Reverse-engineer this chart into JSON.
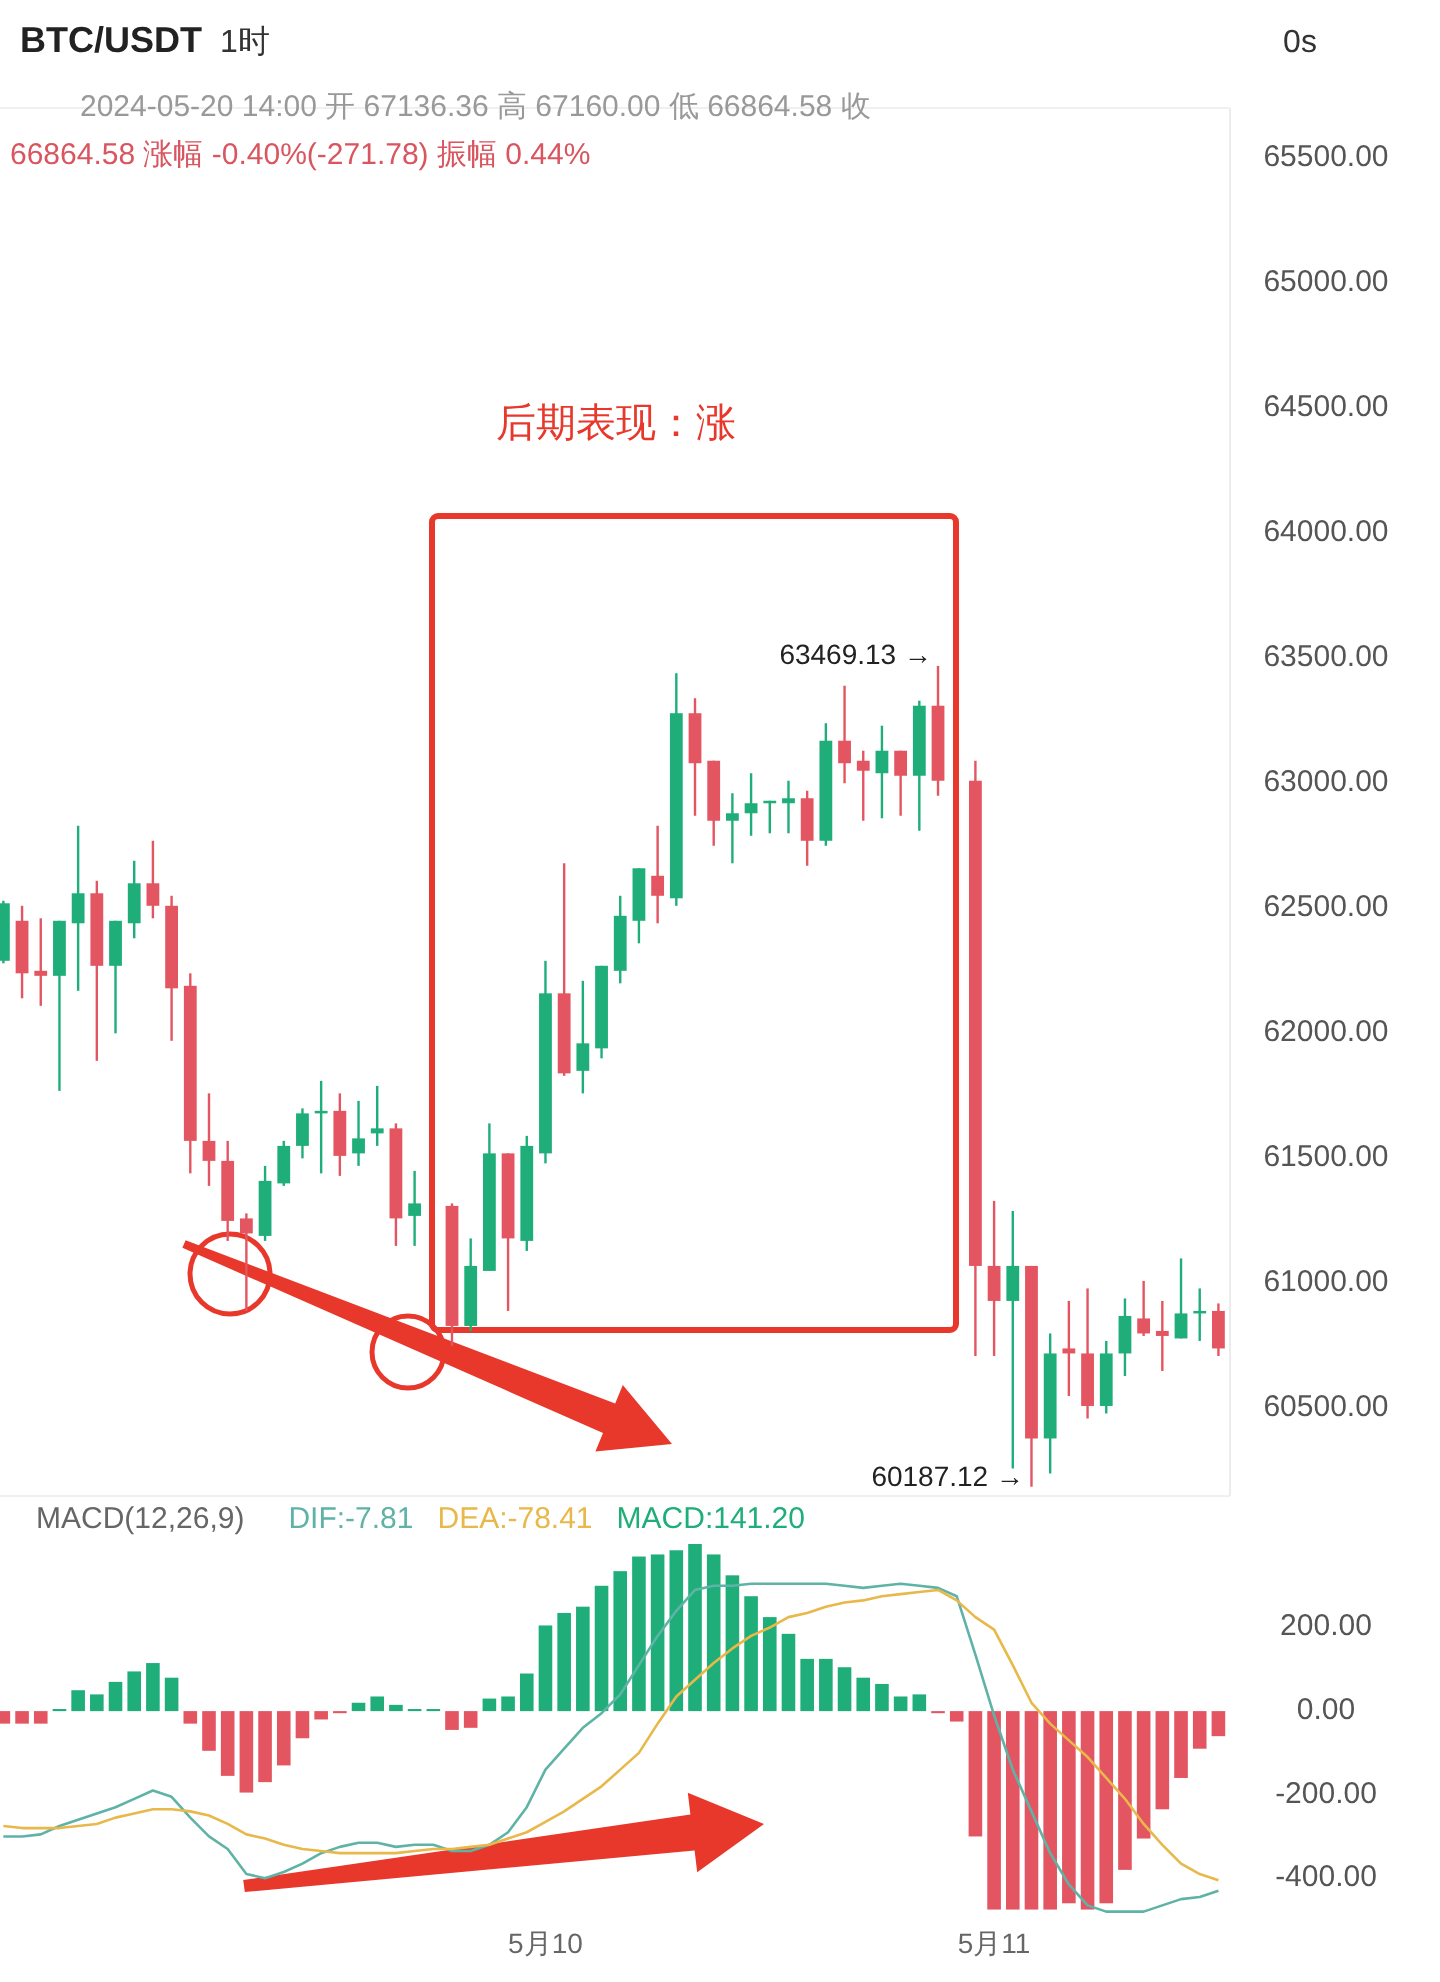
{
  "chart_data": [
    {
      "type": "candlestick",
      "title": "BTC/USDT",
      "subtitle": "2024-05-20 14:00 开 67136.36 高 67160.00 低 66864.58 收",
      "annotations": [
        "66864.58 涨幅 -0.40%(-271.78) 振幅 0.44%",
        "1时",
        "0s",
        "后期表现：涨",
        "63469.13 →",
        "60187.12 →"
      ],
      "categories": [
        null,
        null,
        null,
        null,
        null,
        null,
        null,
        null,
        null,
        null,
        null,
        null,
        null,
        null,
        null,
        null,
        null,
        null,
        null,
        null,
        null,
        null,
        null,
        null,
        null,
        null,
        null,
        null,
        null,
        null,
        null,
        null,
        null,
        null,
        null,
        null,
        null,
        null,
        null,
        null,
        null,
        null,
        null,
        null,
        null,
        null,
        null,
        null,
        null,
        null,
        null,
        null,
        null,
        null,
        null,
        null,
        null,
        null,
        null,
        null,
        null,
        null,
        null,
        null,
        null,
        null
      ],
      "ohlc": [
        [
          62290,
          62530,
          62280,
          62520
        ],
        [
          62450,
          62510,
          62140,
          62240
        ],
        [
          62250,
          62460,
          62110,
          62230
        ],
        [
          62230,
          62450,
          61770,
          62450
        ],
        [
          62440,
          62830,
          62170,
          62560
        ],
        [
          62560,
          62610,
          61890,
          62270
        ],
        [
          62270,
          62450,
          62000,
          62450
        ],
        [
          62440,
          62690,
          62380,
          62600
        ],
        [
          62600,
          62770,
          62460,
          62510
        ],
        [
          62510,
          62550,
          61970,
          62180
        ],
        [
          62190,
          62240,
          61440,
          61570
        ],
        [
          61570,
          61760,
          61390,
          61490
        ],
        [
          61490,
          61570,
          61170,
          61250
        ],
        [
          61260,
          61280,
          60890,
          61200
        ],
        [
          61190,
          61470,
          61170,
          61410
        ],
        [
          61400,
          61570,
          61390,
          61550
        ],
        [
          61550,
          61700,
          61500,
          61680
        ],
        [
          61680,
          61810,
          61440,
          61690
        ],
        [
          61690,
          61760,
          61430,
          61510
        ],
        [
          61520,
          61730,
          61470,
          61580
        ],
        [
          61600,
          61790,
          61550,
          61620
        ],
        [
          61620,
          61640,
          61150,
          61260
        ],
        [
          61270,
          61450,
          61150,
          61320
        ],
        null,
        [
          61310,
          61320,
          60750,
          60830
        ],
        [
          60830,
          61180,
          60810,
          61070
        ],
        [
          61050,
          61640,
          61050,
          61520
        ],
        [
          61520,
          61520,
          60890,
          61180
        ],
        [
          61170,
          61590,
          61130,
          61550
        ],
        [
          61520,
          62290,
          61480,
          62160
        ],
        [
          62160,
          62680,
          61830,
          61840
        ],
        [
          61850,
          62210,
          61760,
          61960
        ],
        [
          61940,
          62270,
          61900,
          62270
        ],
        [
          62250,
          62550,
          62200,
          62470
        ],
        [
          62450,
          62660,
          62360,
          62660
        ],
        [
          62630,
          62830,
          62440,
          62550
        ],
        [
          62540,
          63440,
          62510,
          63280
        ],
        [
          63280,
          63340,
          62870,
          63080
        ],
        [
          63090,
          63090,
          62750,
          62850
        ],
        [
          62850,
          62960,
          62680,
          62880
        ],
        [
          62880,
          63040,
          62790,
          62920
        ],
        [
          62920,
          62930,
          62800,
          62930
        ],
        [
          62920,
          63010,
          62800,
          62940
        ],
        [
          62940,
          62970,
          62670,
          62770
        ],
        [
          62770,
          63240,
          62750,
          63170
        ],
        [
          63170,
          63390,
          63000,
          63080
        ],
        [
          63090,
          63130,
          62850,
          63050
        ],
        [
          63040,
          63230,
          62860,
          63130
        ],
        [
          63130,
          63130,
          62870,
          63030
        ],
        [
          63030,
          63330,
          62810,
          63310
        ],
        [
          63310,
          63469.13,
          62950,
          63010
        ],
        null,
        [
          63010,
          63090,
          60710,
          61070
        ],
        [
          61070,
          61330,
          60710,
          60930
        ],
        [
          60930,
          61290,
          60260,
          61070
        ],
        [
          61070,
          61070,
          60187.12,
          60380
        ],
        [
          60380,
          60800,
          60240,
          60720
        ],
        [
          60740,
          60930,
          60550,
          60720
        ],
        [
          60720,
          60980,
          60460,
          60510
        ],
        [
          60510,
          60770,
          60480,
          60720
        ],
        [
          60720,
          60940,
          60630,
          60870
        ],
        [
          60860,
          61010,
          60790,
          60800
        ],
        [
          60810,
          60930,
          60650,
          60790
        ],
        [
          60780,
          61100,
          60780,
          60880
        ],
        [
          60880,
          60980,
          60770,
          60890
        ],
        [
          60890,
          60920,
          60710,
          60740
        ]
      ],
      "colors": [
        "#1fae7a",
        "#e35561",
        "#e35561",
        "#1fae7a",
        "#1fae7a",
        "#e35561",
        "#1fae7a",
        "#1fae7a",
        "#e35561",
        "#e35561",
        "#e35561",
        "#e35561",
        "#e35561",
        "#e35561",
        "#1fae7a",
        "#1fae7a",
        "#1fae7a",
        "#1fae7a",
        "#e35561",
        "#1fae7a",
        "#1fae7a",
        "#e35561",
        "#1fae7a",
        null,
        "#e35561",
        "#1fae7a",
        "#1fae7a",
        "#e35561",
        "#1fae7a",
        "#1fae7a",
        "#e35561",
        "#1fae7a",
        "#1fae7a",
        "#1fae7a",
        "#1fae7a",
        "#e35561",
        "#1fae7a",
        "#e35561",
        "#e35561",
        "#1fae7a",
        "#1fae7a",
        "#1fae7a",
        "#1fae7a",
        "#e35561",
        "#1fae7a",
        "#e35561",
        "#e35561",
        "#1fae7a",
        "#e35561",
        "#1fae7a",
        "#e35561",
        null,
        "#e35561",
        "#e35561",
        "#1fae7a",
        "#e35561",
        "#1fae7a",
        "#e35561",
        "#e35561",
        "#1fae7a",
        "#1fae7a",
        "#e35561",
        "#e35561",
        "#1fae7a",
        "#1fae7a",
        "#e35561"
      ],
      "ylim": [
        60150,
        65700
      ],
      "yticks": [
        {
          "value": 65500,
          "label": "65500.00"
        },
        {
          "value": 65000,
          "label": "65000.00"
        },
        {
          "value": 64500,
          "label": "64500.00"
        },
        {
          "value": 64000,
          "label": "64000.00"
        },
        {
          "value": 63500,
          "label": "63500.00"
        },
        {
          "value": 63000,
          "label": "63000.00"
        },
        {
          "value": 62500,
          "label": "62500.00"
        },
        {
          "value": 62000,
          "label": "62000.00"
        },
        {
          "value": 61500,
          "label": "61500.00"
        },
        {
          "value": 61000,
          "label": "61000.00"
        },
        {
          "value": 60500,
          "label": "60500.00"
        }
      ],
      "tick_labels": "y"
    },
    {
      "type": "bar",
      "legend_title": "MACD(12,26,9)",
      "legend": "top left",
      "categories": [
        null,
        null,
        null,
        null,
        null,
        null,
        null,
        null,
        null,
        null,
        null,
        null,
        null,
        null,
        null,
        null,
        null,
        null,
        null,
        null,
        null,
        null,
        null,
        null,
        null,
        null,
        null,
        null,
        null,
        "5月10",
        null,
        null,
        null,
        null,
        null,
        null,
        null,
        null,
        null,
        null,
        null,
        null,
        null,
        null,
        null,
        null,
        null,
        null,
        null,
        null,
        null,
        null,
        null,
        "5月11",
        null,
        null,
        null,
        null,
        null,
        null,
        null,
        null,
        null,
        null,
        null,
        null
      ],
      "series": [
        {
          "name": "DIF:-7.81",
          "type": "line",
          "color": "#5fb3a6",
          "values": [
            -300,
            -300,
            -295,
            -275,
            -260,
            -245,
            -230,
            -210,
            -190,
            -205,
            -255,
            -300,
            -330,
            -390,
            -400,
            -385,
            -365,
            -340,
            -325,
            -315,
            -315,
            -325,
            -320,
            -320,
            -335,
            -335,
            -320,
            -290,
            -230,
            -140,
            -90,
            -40,
            -5,
            40,
            110,
            180,
            240,
            290,
            300,
            300,
            305,
            305,
            305,
            305,
            305,
            300,
            295,
            300,
            305,
            300,
            295,
            275,
            135,
            -10,
            -140,
            -240,
            -340,
            -415,
            -465,
            -480,
            -480,
            -480,
            -465,
            -450,
            -445,
            -430
          ]
        },
        {
          "name": "DEA:-78.41",
          "type": "line",
          "color": "#e8b84a",
          "values": [
            -275,
            -280,
            -280,
            -280,
            -275,
            -270,
            -255,
            -245,
            -235,
            -235,
            -240,
            -250,
            -270,
            -295,
            -305,
            -320,
            -330,
            -335,
            -340,
            -340,
            -340,
            -340,
            -335,
            -330,
            -330,
            -325,
            -320,
            -305,
            -290,
            -265,
            -240,
            -210,
            -180,
            -140,
            -100,
            -30,
            35,
            75,
            115,
            150,
            180,
            200,
            225,
            235,
            250,
            260,
            265,
            275,
            280,
            285,
            290,
            265,
            225,
            195,
            110,
            20,
            -30,
            -70,
            -110,
            -160,
            -210,
            -270,
            -320,
            -365,
            -390,
            -405
          ]
        },
        {
          "name": "MACD:141.20",
          "type": "bar",
          "color": "#1fae7a",
          "values": [
            -30,
            -30,
            -30,
            5,
            50,
            40,
            70,
            95,
            115,
            80,
            -30,
            -95,
            -155,
            -195,
            -170,
            -130,
            -65,
            -20,
            -5,
            20,
            35,
            15,
            5,
            5,
            -45,
            -40,
            30,
            35,
            90,
            205,
            235,
            250,
            300,
            335,
            370,
            375,
            385,
            400,
            375,
            325,
            275,
            225,
            185,
            125,
            125,
            105,
            80,
            65,
            35,
            40,
            -5,
            -25,
            -300,
            -475,
            -475,
            -475,
            -475,
            -460,
            -475,
            -460,
            -380,
            -305,
            -235,
            -160,
            -90,
            -60
          ],
          "colors": [
            "#e35561",
            "#e35561",
            "#e35561",
            "#1fae7a",
            "#1fae7a",
            "#1fae7a",
            "#1fae7a",
            "#1fae7a",
            "#1fae7a",
            "#1fae7a",
            "#e35561",
            "#e35561",
            "#e35561",
            "#e35561",
            "#e35561",
            "#e35561",
            "#e35561",
            "#e35561",
            "#e35561",
            "#1fae7a",
            "#1fae7a",
            "#1fae7a",
            "#1fae7a",
            "#1fae7a",
            "#e35561",
            "#e35561",
            "#1fae7a",
            "#1fae7a",
            "#1fae7a",
            "#1fae7a",
            "#1fae7a",
            "#1fae7a",
            "#1fae7a",
            "#1fae7a",
            "#1fae7a",
            "#1fae7a",
            "#1fae7a",
            "#1fae7a",
            "#1fae7a",
            "#1fae7a",
            "#1fae7a",
            "#1fae7a",
            "#1fae7a",
            "#1fae7a",
            "#1fae7a",
            "#1fae7a",
            "#1fae7a",
            "#1fae7a",
            "#1fae7a",
            "#1fae7a",
            "#e35561",
            "#e35561",
            "#e35561",
            "#e35561",
            "#e35561",
            "#e35561",
            "#e35561",
            "#e35561",
            "#e35561",
            "#e35561",
            "#e35561",
            "#e35561",
            "#e35561",
            "#e35561",
            "#e35561",
            "#e35561"
          ]
        }
      ],
      "ylim": [
        -500,
        400
      ],
      "yticks": [
        {
          "value": 200,
          "label": "200.00"
        },
        {
          "value": 0,
          "label": "0.00"
        },
        {
          "value": -200,
          "label": "-200.00"
        },
        {
          "value": -400,
          "label": "-400.00"
        }
      ]
    }
  ]
}
